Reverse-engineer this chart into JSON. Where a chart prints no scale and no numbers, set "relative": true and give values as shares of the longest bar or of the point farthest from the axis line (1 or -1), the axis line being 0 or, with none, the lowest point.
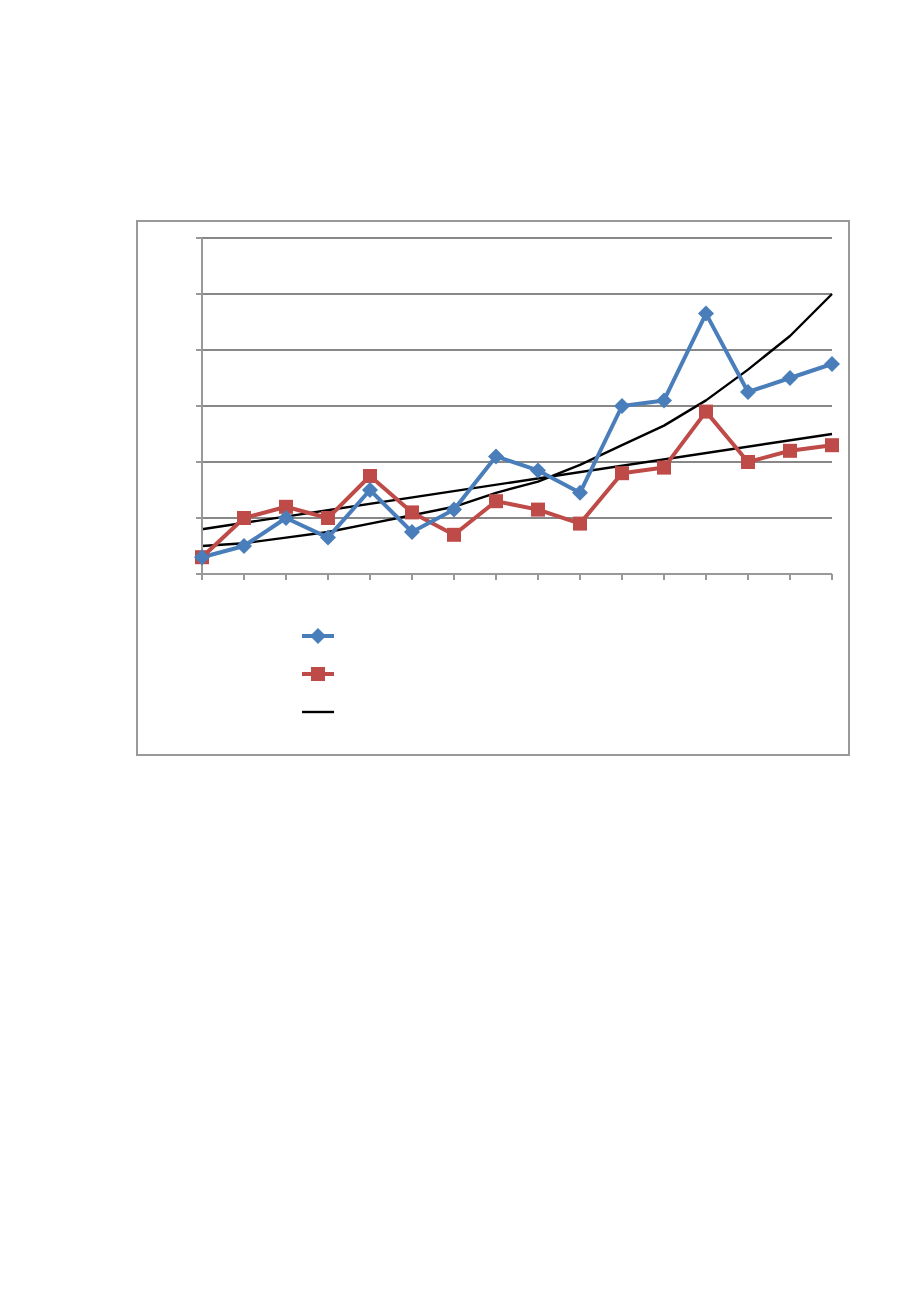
{
  "chart_data": {
    "type": "line",
    "relative": true,
    "grid": "y",
    "categories": [
      null,
      null,
      null,
      null,
      null,
      null,
      null,
      null,
      null,
      null,
      null,
      null,
      null,
      null,
      null,
      null
    ],
    "series": [
      {
        "color": "#4a7ebb",
        "marker": "diamond",
        "values": [
          0.06,
          0.1,
          0.2,
          0.13,
          0.3,
          0.15,
          0.23,
          0.42,
          0.37,
          0.29,
          0.6,
          0.62,
          0.93,
          0.65,
          0.7,
          0.75
        ]
      },
      {
        "color": "#be4b48",
        "marker": "square",
        "values": [
          0.06,
          0.2,
          0.24,
          0.2,
          0.35,
          0.22,
          0.14,
          0.26,
          0.23,
          0.18,
          0.36,
          0.38,
          0.58,
          0.4,
          0.44,
          0.46
        ]
      },
      {
        "color": "#000000",
        "marker": "none",
        "values": [
          0.1,
          0.11,
          0.13,
          0.15,
          0.18,
          0.21,
          0.24,
          0.29,
          0.33,
          0.39,
          0.46,
          0.53,
          0.62,
          0.73,
          0.85,
          1.0
        ]
      },
      {
        "color": "#000000",
        "marker": "none",
        "values": [
          0.16,
          null,
          null,
          null,
          null,
          null,
          null,
          null,
          null,
          null,
          null,
          null,
          null,
          null,
          null,
          0.5
        ]
      }
    ]
  }
}
